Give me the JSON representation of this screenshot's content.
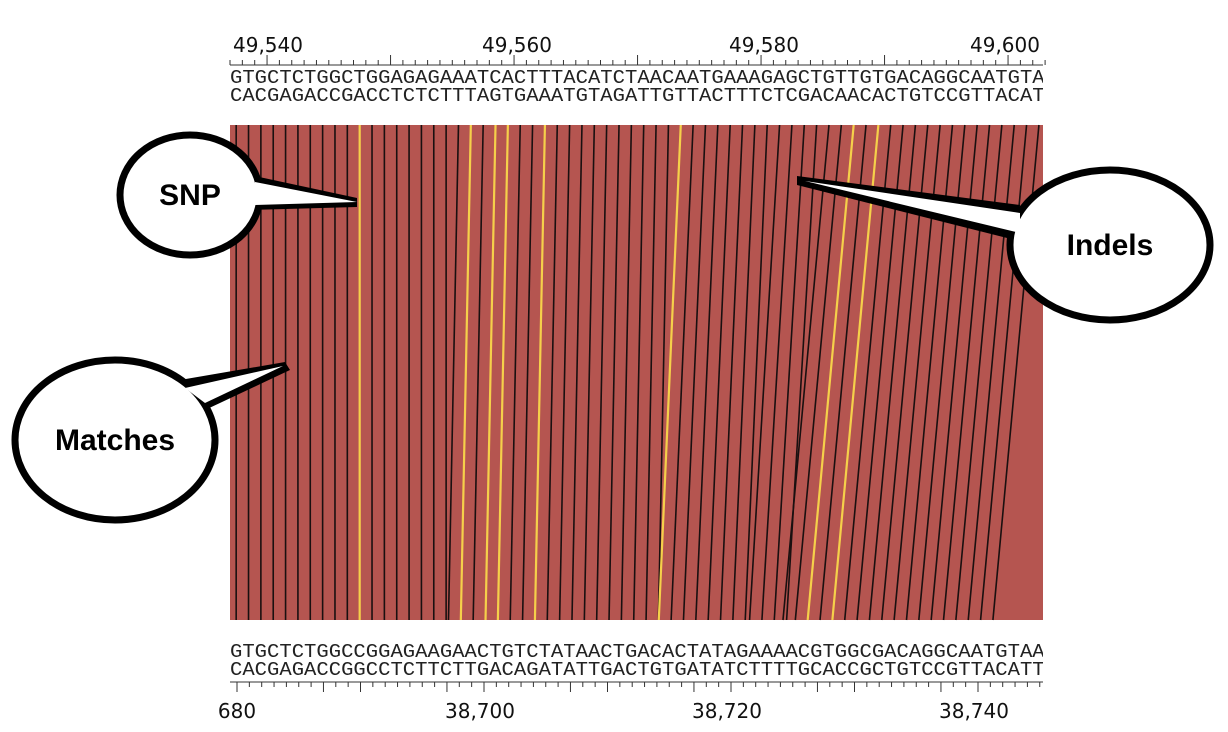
{
  "top_axis": {
    "ticks": [
      "49,540",
      "49,560",
      "49,580",
      "49,600"
    ]
  },
  "top_sequence": {
    "forward": "GTGCTCTGGCTGGAGAGAAATCACTTTACATCTAACAATGAAAGAGCTGTTGTGACAGGCAATGTAA",
    "reverse": "CACGAGACCGACCTCTCTTTAGTGAAATGTAGATTGTTACTTTCTCGACAACACTGTCCGTTACATT"
  },
  "bottom_sequence": {
    "forward": "GTGCTCTGGCCGGAGAAGAACTGTCTATAACTGACACTATAGAAAACGTGGCGACAGGCAATGTAAC",
    "reverse": "CACGAGACCGGCCTCTTCTTGACAGATATTGACTGTGATATCTTTTGCACCGCTGTCCGTTACATTG"
  },
  "bottom_axis": {
    "ticks": [
      "680",
      "38,700",
      "38,720",
      "38,740"
    ]
  },
  "callouts": {
    "snp": "SNP",
    "indels": "Indels",
    "matches": "Matches"
  }
}
